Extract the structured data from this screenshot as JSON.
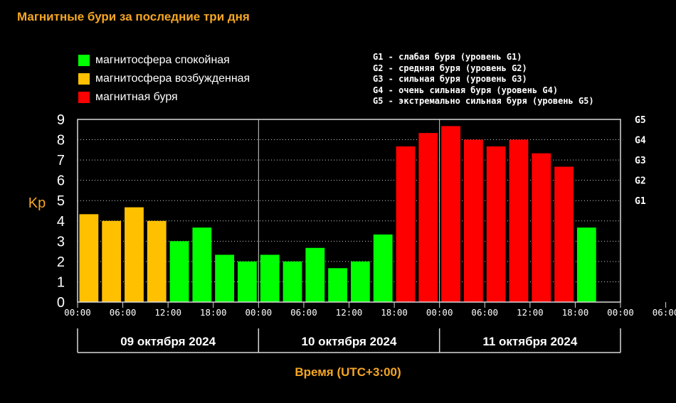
{
  "title": "Магнитные бури за последние три дня",
  "legend": [
    {
      "label": "магнитосфера спокойная",
      "color": "#00ff00"
    },
    {
      "label": "магнитосфера возбужденная",
      "color": "#ffc000"
    },
    {
      "label": "магнитная буря",
      "color": "#ff0000"
    }
  ],
  "g_levels": [
    "G1 - слабая буря (уровень G1)",
    "G2 - средняя буря (уровень G2)",
    "G3 - сильная буря (уровень G3)",
    "G4 - очень сильная буря (уровень G4)",
    "G5 - экстремально сильная буря (уровень G5)"
  ],
  "chart_data": {
    "type": "bar",
    "ylabel": "Kp",
    "xlabel": "Время (UTC+3:00)",
    "ylim": [
      0,
      9
    ],
    "y_ticks": [
      "0",
      "1",
      "2",
      "3",
      "4",
      "5",
      "6",
      "7",
      "8",
      "9"
    ],
    "right_ticks": [
      {
        "value": 5,
        "label": "G1"
      },
      {
        "value": 6,
        "label": "G2"
      },
      {
        "value": 7,
        "label": "G3"
      },
      {
        "value": 8,
        "label": "G4"
      },
      {
        "value": 9,
        "label": "G5"
      }
    ],
    "x_tick_labels": [
      "00:00",
      "06:00",
      "12:00",
      "18:00",
      "00:00",
      "06:00",
      "12:00",
      "18:00",
      "00:00",
      "06:00",
      "12:00",
      "18:00",
      "00:00",
      "06:00",
      "12:00",
      "18:00",
      "00:00"
    ],
    "days": [
      "09 октября 2024",
      "10 октября 2024",
      "11 октября 2024"
    ],
    "grid": true,
    "values": [
      4.33,
      4.0,
      4.67,
      4.0,
      3.0,
      3.67,
      2.33,
      2.0,
      2.33,
      2.0,
      2.67,
      1.67,
      2.0,
      3.33,
      7.67,
      8.33,
      8.67,
      8.0,
      7.67,
      8.0,
      7.33,
      6.67,
      3.67
    ],
    "colors": {
      "quiet": "#00ff00",
      "unsettled": "#ffc000",
      "storm": "#ff0000"
    },
    "bar_colors": [
      "unsettled",
      "unsettled",
      "unsettled",
      "unsettled",
      "quiet",
      "quiet",
      "quiet",
      "quiet",
      "quiet",
      "quiet",
      "quiet",
      "quiet",
      "quiet",
      "quiet",
      "storm",
      "storm",
      "storm",
      "storm",
      "storm",
      "storm",
      "storm",
      "storm",
      "quiet"
    ]
  }
}
